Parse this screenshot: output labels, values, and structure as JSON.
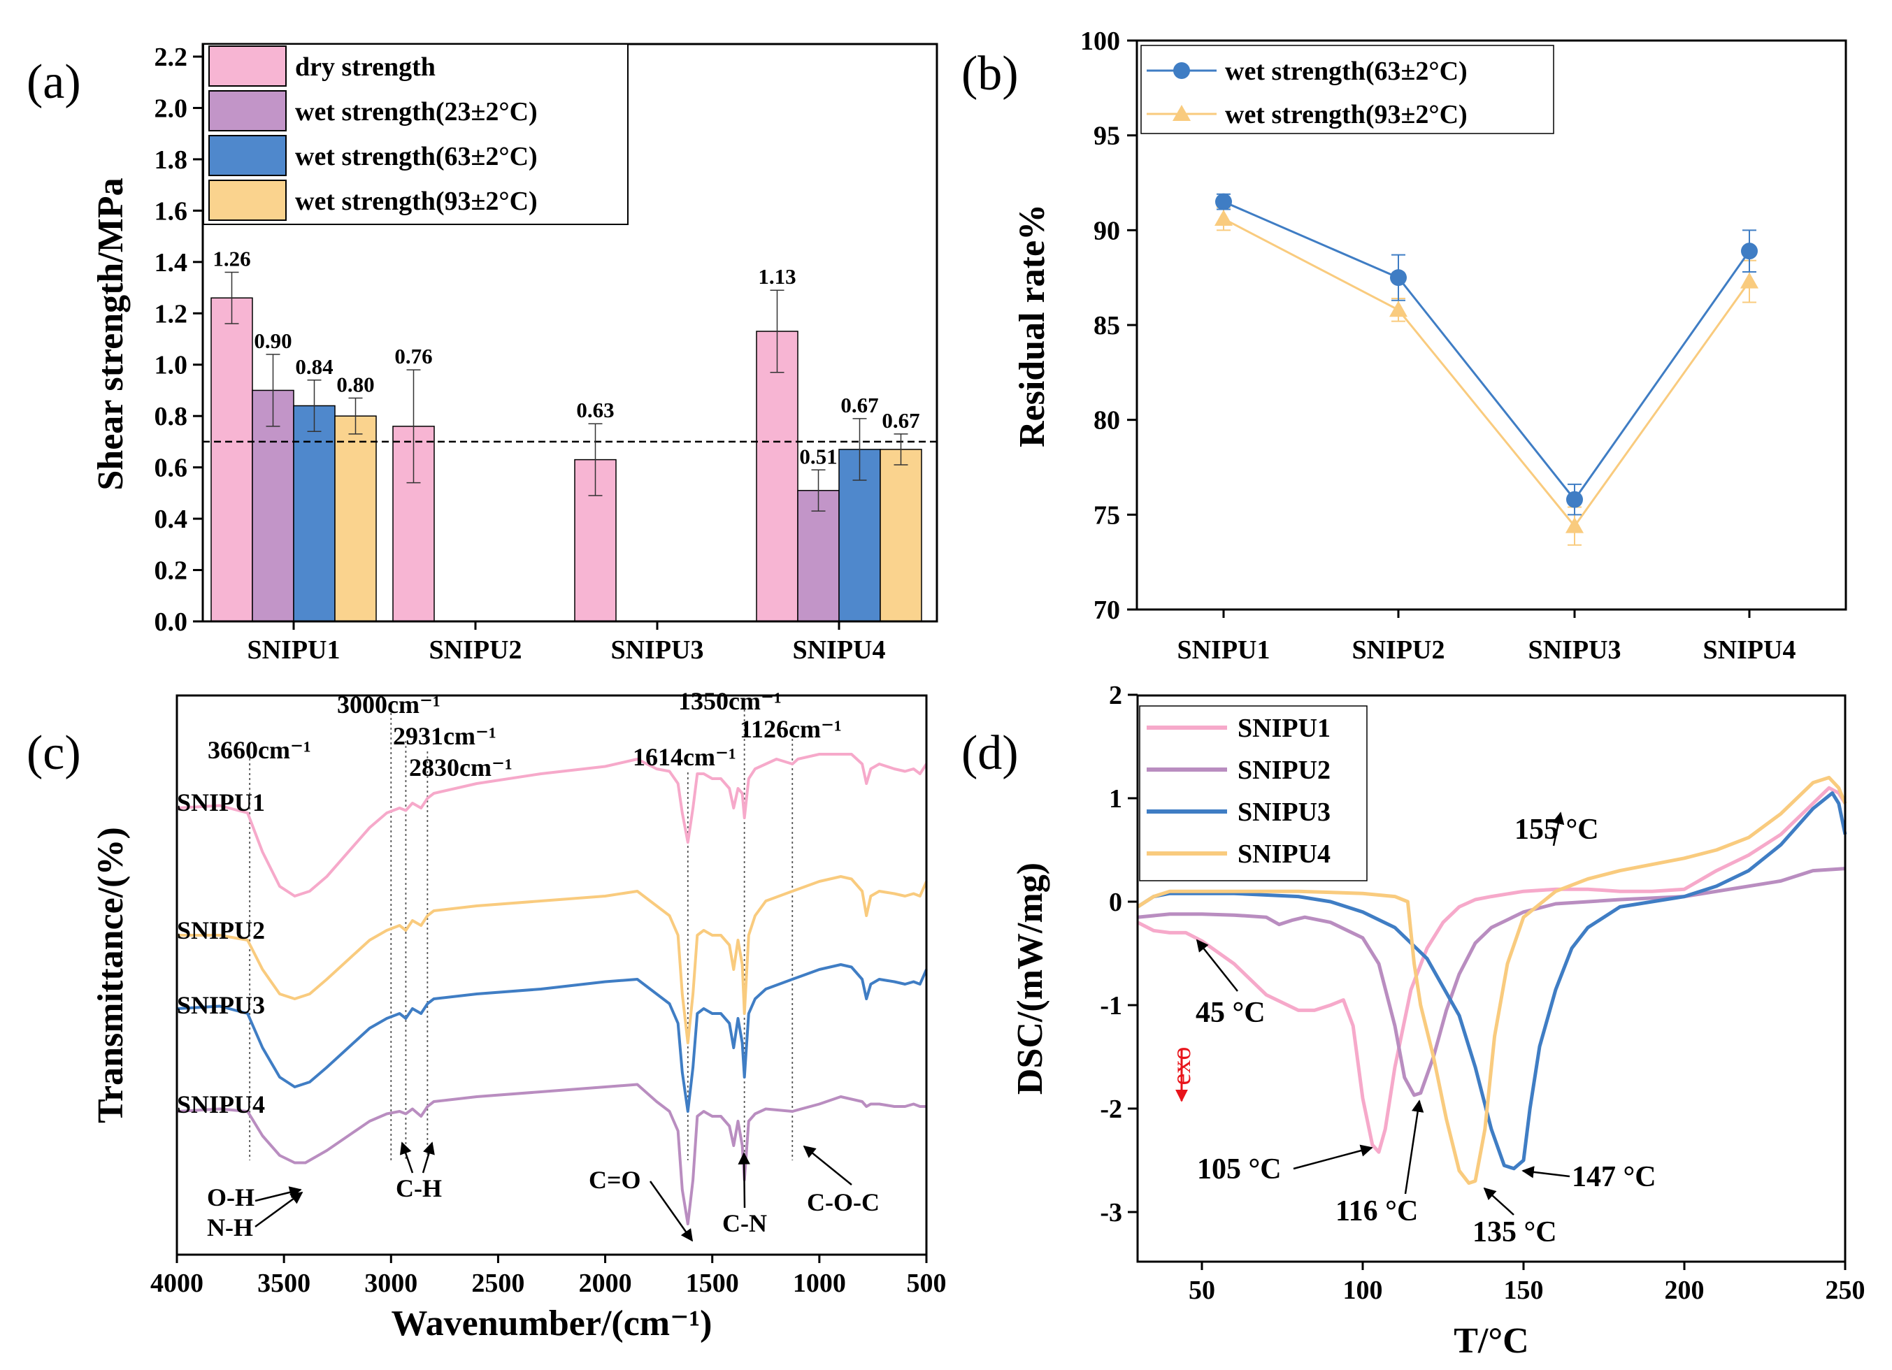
{
  "colors": {
    "dry": "#F7B5D3",
    "wet23": "#C295C8",
    "wet63": "#4F88CC",
    "wet93": "#FAD38E",
    "pink_line": "#F6A9CA",
    "purple_line": "#B98DC0",
    "blue_line": "#3F7DC4",
    "orange_line": "#F9CB7E",
    "exo": "#E8141B"
  },
  "chart_data": [
    {
      "id": "a",
      "panel_label": "(a)",
      "type": "bar",
      "ylabel": "Shear strength/MPa",
      "xlabel": "",
      "ylim": [
        0,
        2.2
      ],
      "yticks": [
        "0.0",
        "0.2",
        "0.4",
        "0.6",
        "0.8",
        "1.0",
        "1.2",
        "1.4",
        "1.6",
        "1.8",
        "2.0",
        "2.2"
      ],
      "categories": [
        "SNIPU1",
        "SNIPU2",
        "SNIPU3",
        "SNIPU4"
      ],
      "reference_line": 0.7,
      "series": [
        {
          "name": "dry strength",
          "color_key": "dry",
          "values": [
            1.26,
            0.76,
            0.63,
            1.13
          ],
          "errors": [
            0.1,
            0.22,
            0.14,
            0.16
          ],
          "labels": [
            "1.26",
            "0.76",
            "0.63",
            "1.13"
          ]
        },
        {
          "name": "wet strength(23±2°C)",
          "color_key": "wet23",
          "values": [
            0.9,
            null,
            null,
            0.51
          ],
          "errors": [
            0.14,
            null,
            null,
            0.08
          ],
          "labels": [
            "0.90",
            "",
            "",
            "0.51"
          ]
        },
        {
          "name": "wet strength(63±2°C)",
          "color_key": "wet63",
          "values": [
            0.84,
            null,
            null,
            0.67
          ],
          "errors": [
            0.1,
            null,
            null,
            0.12
          ],
          "labels": [
            "0.84",
            "",
            "",
            "0.67"
          ]
        },
        {
          "name": "wet strength(93±2°C)",
          "color_key": "wet93",
          "values": [
            0.8,
            null,
            null,
            0.67
          ],
          "errors": [
            0.07,
            null,
            null,
            0.06
          ],
          "labels": [
            "0.80",
            "",
            "",
            "0.67"
          ]
        }
      ]
    },
    {
      "id": "b",
      "panel_label": "(b)",
      "type": "line",
      "ylabel": "Residual rate%",
      "xlabel": "",
      "ylim": [
        70,
        100
      ],
      "yticks": [
        "70",
        "75",
        "80",
        "85",
        "90",
        "95",
        "100"
      ],
      "categories": [
        "SNIPU1",
        "SNIPU2",
        "SNIPU3",
        "SNIPU4"
      ],
      "series": [
        {
          "name": "wet strength(63±2°C)",
          "marker": "circle",
          "color_key": "blue_line",
          "values": [
            91.5,
            87.5,
            75.8,
            88.9
          ],
          "errors": [
            0.4,
            1.2,
            0.8,
            1.1
          ]
        },
        {
          "name": "wet strength(93±2°C)",
          "marker": "triangle",
          "color_key": "orange_line",
          "values": [
            90.6,
            85.8,
            74.4,
            87.3
          ],
          "errors": [
            0.6,
            0.6,
            1.0,
            1.1
          ]
        }
      ]
    },
    {
      "id": "c",
      "panel_label": "(c)",
      "type": "line",
      "ylabel": "Transmittance/(%)",
      "xlabel": "Wavenumber/(cm⁻¹)",
      "xlim": [
        4000,
        500
      ],
      "xticks": [
        "4000",
        "3500",
        "3000",
        "2500",
        "2000",
        "1500",
        "1000",
        "500"
      ],
      "series": [
        {
          "name": "SNIPU1",
          "color_key": "pink_line",
          "x": [
            4000,
            3800,
            3670,
            3600,
            3520,
            3450,
            3380,
            3300,
            3200,
            3100,
            3020,
            2960,
            2931,
            2900,
            2860,
            2830,
            2800,
            2600,
            2300,
            2000,
            1850,
            1760,
            1700,
            1660,
            1640,
            1614,
            1590,
            1570,
            1540,
            1500,
            1460,
            1420,
            1400,
            1380,
            1360,
            1350,
            1330,
            1300,
            1250,
            1200,
            1126,
            1100,
            1000,
            900,
            850,
            800,
            780,
            760,
            720,
            650,
            600,
            560,
            530,
            500
          ],
          "y": [
            88,
            88.5,
            87,
            79,
            72,
            70,
            71,
            74,
            79,
            84,
            87,
            88,
            87.5,
            89,
            88,
            90,
            91,
            93,
            95,
            96.5,
            98,
            96,
            95.5,
            93,
            87,
            81,
            88,
            95,
            95,
            94,
            94,
            92,
            88,
            92,
            91,
            86,
            94,
            96,
            97,
            98,
            97,
            98,
            99,
            99,
            99,
            97,
            93,
            96,
            97,
            96,
            95.5,
            96,
            95,
            97
          ]
        },
        {
          "name": "SNIPU2",
          "color_key": "orange_line",
          "x": [
            4000,
            3800,
            3670,
            3600,
            3520,
            3450,
            3380,
            3300,
            3200,
            3100,
            3020,
            2960,
            2931,
            2900,
            2860,
            2830,
            2800,
            2600,
            2300,
            2000,
            1850,
            1760,
            1700,
            1660,
            1640,
            1614,
            1590,
            1570,
            1540,
            1500,
            1460,
            1420,
            1400,
            1380,
            1360,
            1350,
            1330,
            1300,
            1250,
            1126,
            1000,
            900,
            850,
            800,
            780,
            760,
            720,
            650,
            600,
            560,
            530,
            500
          ],
          "y": [
            62,
            62,
            61,
            55,
            50,
            49,
            50,
            53,
            57,
            61,
            63,
            64,
            63,
            65,
            64,
            66,
            67,
            68,
            69,
            70,
            71,
            68,
            66,
            62,
            50,
            40,
            50,
            62,
            63,
            62,
            62,
            60,
            55,
            61,
            56,
            46,
            62,
            66,
            69,
            71,
            73,
            74,
            73.5,
            71,
            66,
            70,
            71,
            70.5,
            70,
            70.5,
            70,
            73
          ]
        },
        {
          "name": "SNIPU3",
          "color_key": "blue_line",
          "x": [
            4000,
            3800,
            3670,
            3600,
            3520,
            3450,
            3380,
            3300,
            3200,
            3100,
            3020,
            2960,
            2931,
            2900,
            2860,
            2830,
            2800,
            2600,
            2300,
            2000,
            1850,
            1760,
            1700,
            1660,
            1640,
            1614,
            1590,
            1570,
            1540,
            1500,
            1460,
            1420,
            1400,
            1380,
            1360,
            1350,
            1330,
            1300,
            1250,
            1126,
            1000,
            900,
            850,
            800,
            780,
            760,
            720,
            650,
            600,
            560,
            530,
            500
          ],
          "y": [
            47,
            47.5,
            46,
            39,
            33,
            31,
            32,
            35,
            39,
            43,
            45,
            46,
            45,
            47,
            46,
            48,
            49,
            50,
            51,
            52.5,
            53,
            50,
            48,
            44,
            34,
            26,
            35,
            46,
            47,
            46,
            46,
            44,
            39,
            45,
            40,
            33,
            46,
            49,
            51,
            53,
            55,
            56,
            55.5,
            53,
            49,
            52,
            53,
            52.5,
            52,
            52.5,
            52,
            55
          ]
        },
        {
          "name": "SNIPU4",
          "color_key": "purple_line",
          "x": [
            4000,
            3800,
            3670,
            3600,
            3520,
            3450,
            3400,
            3300,
            3200,
            3100,
            3020,
            2960,
            2931,
            2900,
            2860,
            2830,
            2800,
            2600,
            2300,
            2000,
            1850,
            1760,
            1700,
            1660,
            1640,
            1614,
            1590,
            1570,
            1540,
            1500,
            1460,
            1420,
            1400,
            1380,
            1360,
            1350,
            1330,
            1300,
            1250,
            1126,
            1000,
            900,
            850,
            800,
            780,
            760,
            720,
            650,
            600,
            560,
            530,
            500
          ],
          "y": [
            26,
            26.5,
            26,
            21,
            17,
            15.5,
            15.5,
            18,
            21,
            24,
            25.5,
            26,
            25.5,
            26.5,
            25,
            27,
            28,
            29,
            30,
            31,
            31.5,
            28,
            26,
            22,
            10,
            3,
            12,
            25,
            26,
            25,
            25,
            23,
            19,
            24,
            19,
            12,
            24,
            25.5,
            26.5,
            26,
            27.5,
            29,
            28.5,
            28,
            27,
            27.5,
            27.5,
            27,
            27,
            27.5,
            27,
            27
          ]
        }
      ],
      "wavenumber_labels": [
        "3660cm⁻¹",
        "3000cm⁻¹",
        "2931cm⁻¹",
        "2830cm⁻¹",
        "1614cm⁻¹",
        "1350cm⁻¹",
        "1126cm⁻¹"
      ],
      "vlines": [
        3660,
        3000,
        2931,
        2830,
        1614,
        1350,
        1126
      ],
      "band_labels": [
        "O-H",
        "N-H",
        "C-H",
        "C=O",
        "C-N",
        "C-O-C"
      ]
    },
    {
      "id": "d",
      "panel_label": "(d)",
      "type": "line",
      "ylabel": "DSC/(mW/mg)",
      "xlabel": "T/°C",
      "xlim": [
        30,
        250
      ],
      "ylim": [
        -3.5,
        2
      ],
      "xticks": [
        "50",
        "100",
        "150",
        "200",
        "250"
      ],
      "yticks": [
        "-3",
        "-2",
        "-1",
        "0",
        "1",
        "2"
      ],
      "series": [
        {
          "name": "SNIPU1",
          "color_key": "pink_line",
          "x": [
            30,
            35,
            40,
            45,
            50,
            60,
            70,
            80,
            85,
            90,
            94,
            97,
            100,
            103,
            105,
            107,
            110,
            115,
            120,
            125,
            130,
            135,
            140,
            150,
            160,
            170,
            180,
            190,
            200,
            210,
            220,
            230,
            240,
            245,
            248,
            250
          ],
          "y": [
            -0.2,
            -0.28,
            -0.3,
            -0.3,
            -0.38,
            -0.6,
            -0.9,
            -1.05,
            -1.05,
            -1.0,
            -0.95,
            -1.2,
            -1.9,
            -2.35,
            -2.42,
            -2.2,
            -1.6,
            -0.85,
            -0.45,
            -0.2,
            -0.05,
            0.02,
            0.05,
            0.1,
            0.12,
            0.12,
            0.1,
            0.1,
            0.12,
            0.3,
            0.45,
            0.65,
            0.95,
            1.1,
            1.05,
            0.95
          ]
        },
        {
          "name": "SNIPU2",
          "color_key": "purple_line",
          "x": [
            30,
            40,
            50,
            60,
            70,
            74,
            78,
            82,
            90,
            100,
            105,
            110,
            113,
            116,
            118,
            122,
            126,
            130,
            135,
            140,
            150,
            160,
            180,
            200,
            220,
            230,
            240,
            250
          ],
          "y": [
            -0.15,
            -0.12,
            -0.12,
            -0.13,
            -0.15,
            -0.22,
            -0.18,
            -0.15,
            -0.2,
            -0.35,
            -0.6,
            -1.2,
            -1.7,
            -1.87,
            -1.85,
            -1.5,
            -1.05,
            -0.7,
            -0.4,
            -0.25,
            -0.1,
            -0.02,
            0.02,
            0.05,
            0.15,
            0.2,
            0.3,
            0.32
          ]
        },
        {
          "name": "SNIPU3",
          "color_key": "blue_line",
          "x": [
            30,
            35,
            40,
            60,
            80,
            90,
            100,
            110,
            120,
            130,
            135,
            140,
            144,
            147,
            150,
            152,
            155,
            160,
            165,
            170,
            180,
            190,
            200,
            210,
            220,
            230,
            240,
            246,
            248,
            250
          ],
          "y": [
            -0.05,
            0.05,
            0.08,
            0.08,
            0.05,
            0.0,
            -0.1,
            -0.25,
            -0.55,
            -1.1,
            -1.6,
            -2.2,
            -2.55,
            -2.58,
            -2.5,
            -2.0,
            -1.4,
            -0.85,
            -0.45,
            -0.25,
            -0.05,
            0.0,
            0.05,
            0.15,
            0.3,
            0.55,
            0.9,
            1.05,
            0.95,
            0.65
          ]
        },
        {
          "name": "SNIPU4",
          "color_key": "orange_line",
          "x": [
            30,
            35,
            40,
            60,
            80,
            100,
            110,
            114,
            116,
            118,
            122,
            126,
            130,
            133,
            135,
            138,
            141,
            145,
            150,
            160,
            170,
            180,
            190,
            200,
            210,
            220,
            230,
            240,
            245,
            248,
            250
          ],
          "y": [
            -0.05,
            0.05,
            0.1,
            0.1,
            0.1,
            0.08,
            0.05,
            0.0,
            -0.6,
            -1.0,
            -1.5,
            -2.1,
            -2.6,
            -2.72,
            -2.7,
            -2.2,
            -1.3,
            -0.6,
            -0.15,
            0.1,
            0.22,
            0.3,
            0.36,
            0.42,
            0.5,
            0.62,
            0.85,
            1.15,
            1.2,
            1.1,
            0.95
          ]
        }
      ],
      "annotations": [
        "45 °C",
        "105 °C",
        "116 °C",
        "135 °C",
        "147 °C",
        "155 °C"
      ],
      "exo_label": "exo"
    }
  ]
}
